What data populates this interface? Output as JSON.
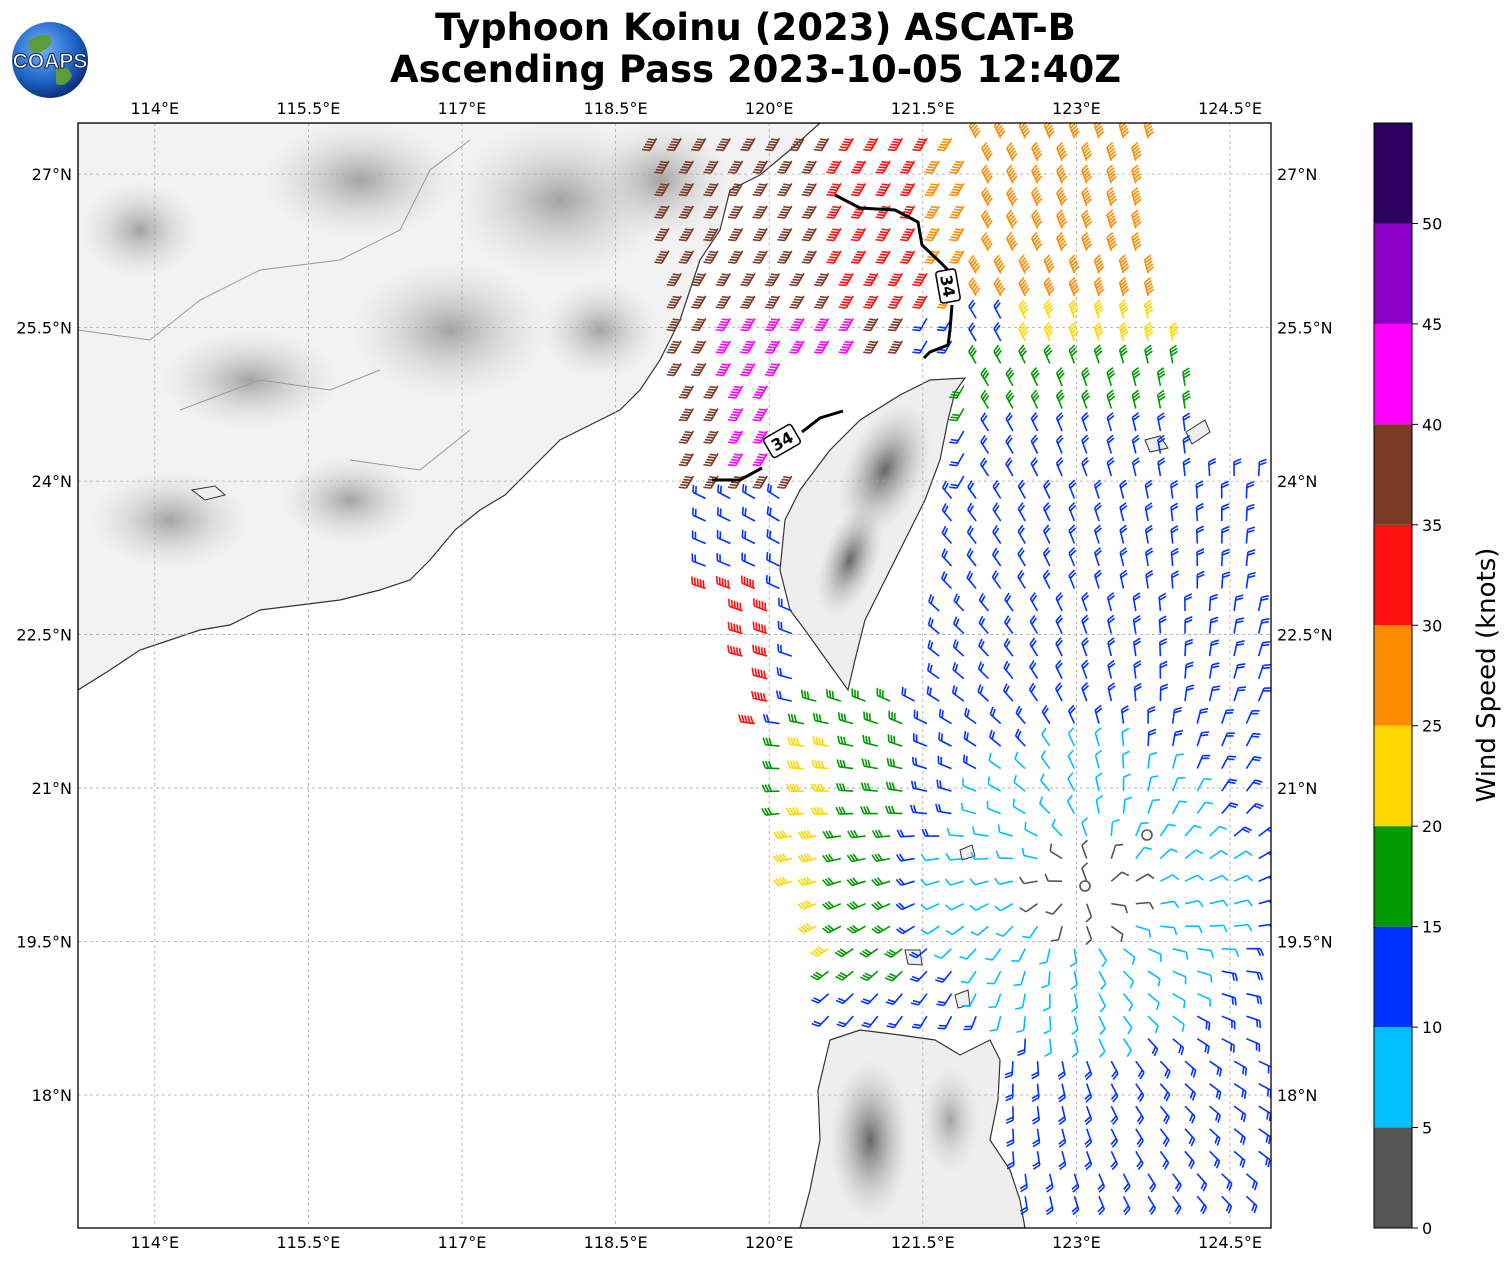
{
  "title_line1": "Typhoon Koinu (2023) ASCAT-B",
  "title_line2": "Ascending Pass 2023-10-05 12:40Z",
  "logo_text": "COAPS",
  "map": {
    "lon_range": [
      113.25,
      124.9
    ],
    "lat_range": [
      16.7,
      27.5
    ],
    "lon_ticks": [
      "114°E",
      "115.5°E",
      "117°E",
      "118.5°E",
      "120°E",
      "121.5°E",
      "123°E",
      "124.5°E"
    ],
    "lon_tick_values": [
      114,
      115.5,
      117,
      118.5,
      120,
      121.5,
      123,
      124.5
    ],
    "lat_ticks": [
      "27°N",
      "25.5°N",
      "24°N",
      "22.5°N",
      "21°N",
      "19.5°N",
      "18°N"
    ],
    "lat_tick_values": [
      27,
      25.5,
      24,
      22.5,
      21,
      19.5,
      18
    ],
    "gridlines": true,
    "storm_center": {
      "lon": 123.1,
      "lat": 20.0
    },
    "contour_label": "34"
  },
  "colorbar": {
    "label": "Wind Speed (knots)",
    "tick_labels": [
      "0",
      "5",
      "10",
      "15",
      "20",
      "25",
      "30",
      "35",
      "40",
      "45",
      "50"
    ],
    "tick_values": [
      0,
      5,
      10,
      15,
      20,
      25,
      30,
      35,
      40,
      45,
      50
    ],
    "range": [
      0,
      55
    ],
    "colors": [
      "#555555",
      "#00bfff",
      "#0033ff",
      "#009900",
      "#ffd700",
      "#ff8c00",
      "#ff1010",
      "#7b3a26",
      "#ff00ff",
      "#8b00c9",
      "#2c0060"
    ]
  }
}
